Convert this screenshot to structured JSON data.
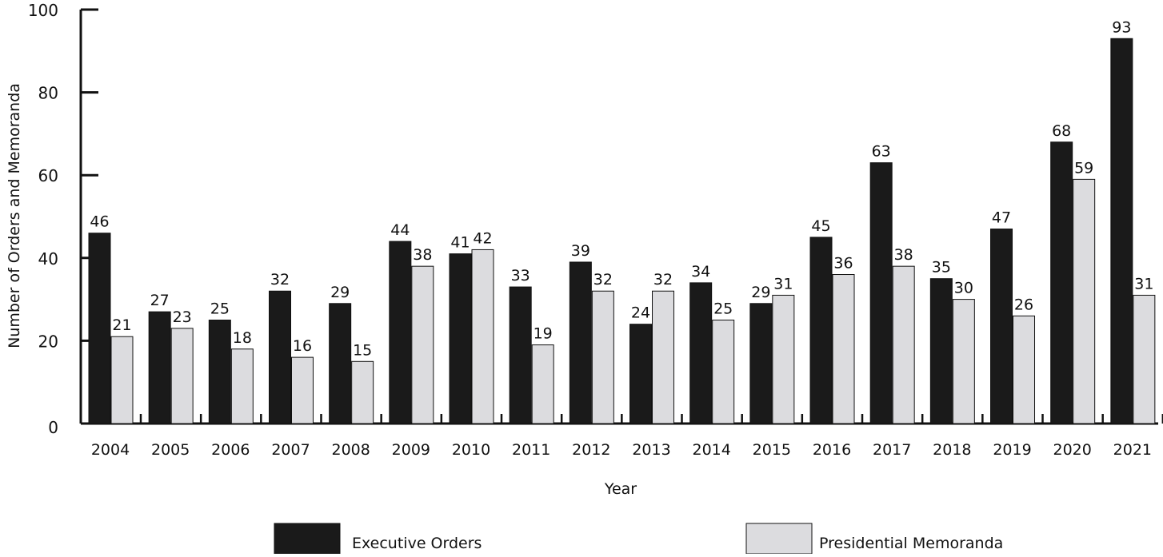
{
  "chart_data": {
    "type": "bar",
    "title": "",
    "xlabel": "Year",
    "ylabel": "Number of Orders and Memoranda",
    "ylim": [
      0,
      100
    ],
    "yticks": [
      0,
      20,
      40,
      60,
      80,
      100
    ],
    "grid": false,
    "legend_position": "bottom",
    "categories": [
      "2004",
      "2005",
      "2006",
      "2007",
      "2008",
      "2009",
      "2010",
      "2011",
      "2012",
      "2013",
      "2014",
      "2015",
      "2016",
      "2017",
      "2018",
      "2019",
      "2020",
      "2021"
    ],
    "series": [
      {
        "name": "Executive Orders",
        "color": "#1a1a1a",
        "values": [
          46,
          27,
          25,
          32,
          29,
          44,
          41,
          33,
          39,
          24,
          34,
          29,
          45,
          63,
          35,
          47,
          68,
          93
        ]
      },
      {
        "name": "Presidential Memoranda",
        "color": "#dcdcdf",
        "values": [
          21,
          23,
          18,
          16,
          15,
          38,
          42,
          19,
          32,
          32,
          25,
          31,
          36,
          38,
          30,
          26,
          59,
          31
        ]
      }
    ]
  }
}
